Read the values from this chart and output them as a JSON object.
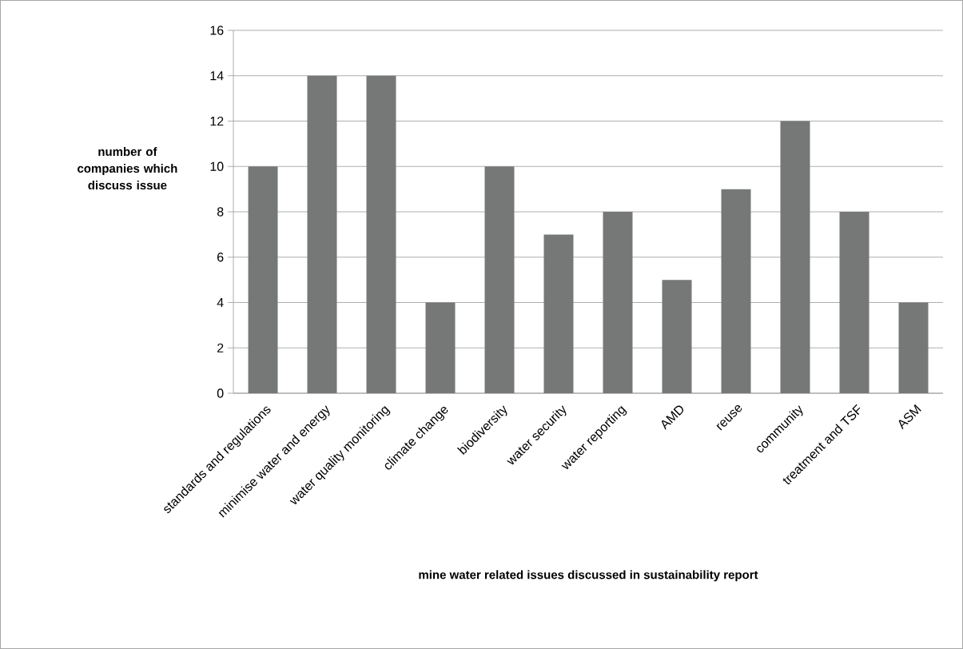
{
  "chart_data": {
    "type": "bar",
    "xlabel": "mine water related issues discussed in sustainability report",
    "ylabel": "number of companies which discuss issue",
    "categories": [
      "standards and regulations",
      "minimise water and energy",
      "water quality monitoring",
      "climate change",
      "biodiversity",
      "water security",
      "water reporting",
      "AMD",
      "reuse",
      "community",
      "treatment and TSF",
      "ASM"
    ],
    "values": [
      10,
      14,
      14,
      4,
      10,
      7,
      8,
      5,
      9,
      12,
      8,
      4
    ],
    "color": "#757877",
    "ylim": [
      0,
      16
    ],
    "yticks": [
      0,
      2,
      4,
      6,
      8,
      10,
      12,
      14,
      16
    ],
    "grid": "y"
  }
}
